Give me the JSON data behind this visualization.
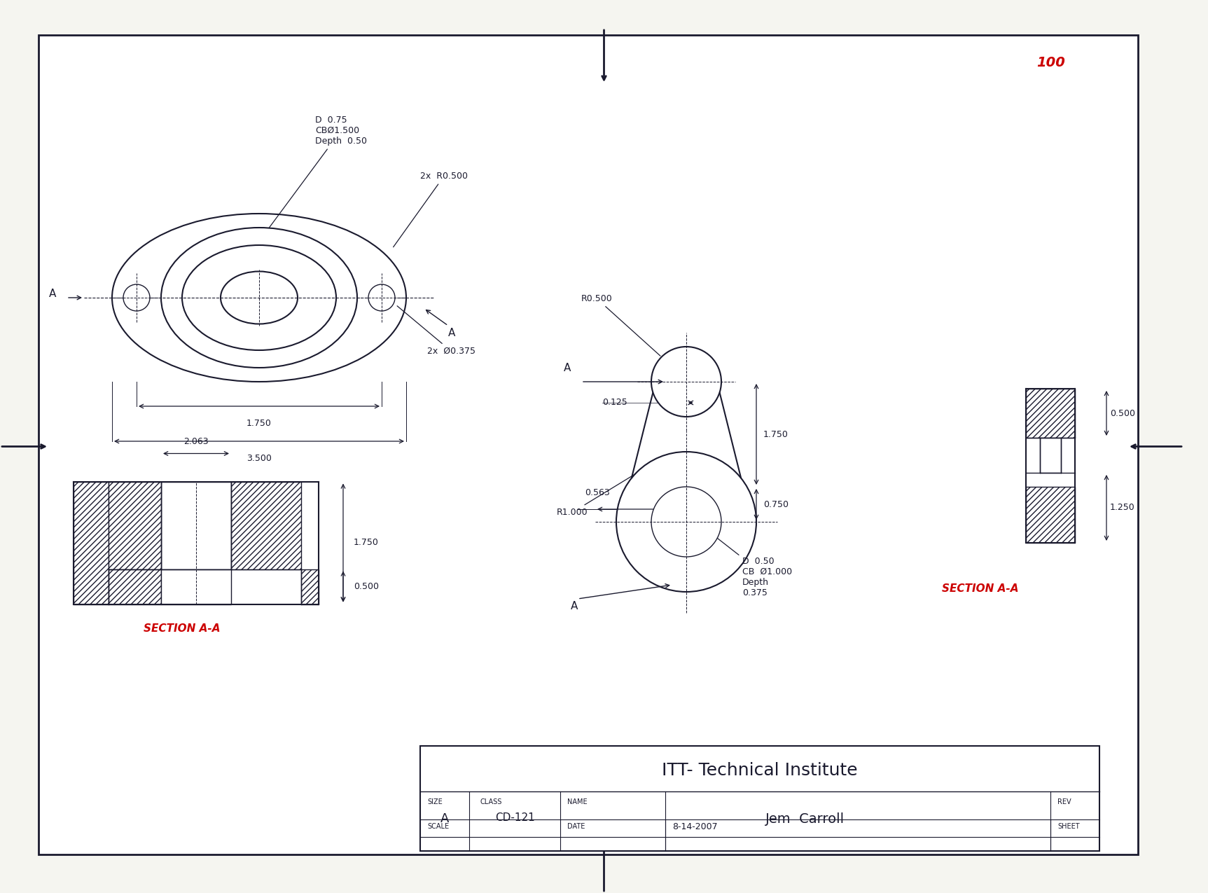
{
  "bg_color": "#f5f5f0",
  "paper_color": "#ffffff",
  "line_color": "#1a1a2e",
  "red_color": "#cc0000",
  "hatch_color": "#1a1a2e",
  "title_text": "ITT- Technical Institute",
  "size_label": "A",
  "class_label": "CD-121",
  "name_label": "Jem  Carroll",
  "date_label": "8-14-2007",
  "red_annotation": "100",
  "section_label_1": "SECTION A-A",
  "section_label_2": "SECTION A-A"
}
